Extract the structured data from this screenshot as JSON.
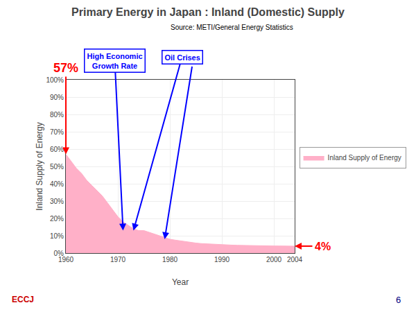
{
  "chart_data": {
    "type": "area",
    "title": "Primary Energy in Japan : Inland (Domestic) Supply",
    "source": "Source: METI/General Energy Statistics",
    "xlabel": "Year",
    "ylabel": "Inland Supply of Energy",
    "x": [
      1960,
      1961,
      1962,
      1963,
      1964,
      1965,
      1966,
      1967,
      1968,
      1969,
      1970,
      1971,
      1972,
      1973,
      1974,
      1975,
      1976,
      1977,
      1978,
      1979,
      1980,
      1981,
      1982,
      1983,
      1984,
      1985,
      1986,
      1987,
      1988,
      1989,
      1990,
      1991,
      1992,
      1993,
      1994,
      1995,
      1996,
      1997,
      1998,
      1999,
      2000,
      2001,
      2002,
      2003,
      2004
    ],
    "series": [
      {
        "name": "Inland Supply of Energy",
        "color": "#FFB0C8",
        "values": [
          57,
          53,
          49,
          46,
          42,
          39,
          36,
          33,
          29,
          25,
          21,
          18,
          16,
          14,
          13,
          13,
          12,
          11,
          10,
          9,
          8,
          7.5,
          7,
          6.5,
          6,
          5.8,
          5.5,
          5.3,
          5.1,
          5,
          4.8,
          4.7,
          4.6,
          4.5,
          4.4,
          4.3,
          4.3,
          4.2,
          4.2,
          4.1,
          4.1,
          4.1,
          4.0,
          4.0,
          4.0
        ]
      }
    ],
    "xlim": [
      1960,
      2004
    ],
    "ylim": [
      0,
      100
    ],
    "xticks": [
      1960,
      1970,
      1980,
      1990,
      2000,
      2004
    ],
    "yticks": [
      {
        "value": 0,
        "label": "0%"
      },
      {
        "value": 10,
        "label": "10%"
      },
      {
        "value": 20,
        "label": "20%"
      },
      {
        "value": 30,
        "label": "30%"
      },
      {
        "value": 40,
        "label": "40%"
      },
      {
        "value": 50,
        "label": "50%"
      },
      {
        "value": 60,
        "label": "60%"
      },
      {
        "value": 70,
        "label": "70%"
      },
      {
        "value": 80,
        "label": "80%"
      },
      {
        "value": 90,
        "label": "90%"
      },
      {
        "value": 100,
        "label": "100%"
      }
    ],
    "grid": true,
    "legend": "right",
    "annotations": [
      {
        "text": "57%",
        "color": "#FF0000",
        "targets": [
          {
            "x": 1960,
            "y": 57
          }
        ]
      },
      {
        "text": "High Economic\nGrowth Rate",
        "color": "#0000FF",
        "targets": [
          {
            "x": 1971,
            "y": 13
          }
        ]
      },
      {
        "text": "Oil Crises",
        "color": "#0000FF",
        "targets": [
          {
            "x": 1973,
            "y": 13
          },
          {
            "x": 1979,
            "y": 8
          }
        ]
      },
      {
        "text": "4%",
        "color": "#FF0000",
        "targets": [
          {
            "x": 2004,
            "y": 4
          }
        ]
      }
    ],
    "footer": [
      {
        "text": "ECCJ",
        "color": "#CC0000"
      },
      {
        "text": "6",
        "color": "navy"
      }
    ]
  }
}
